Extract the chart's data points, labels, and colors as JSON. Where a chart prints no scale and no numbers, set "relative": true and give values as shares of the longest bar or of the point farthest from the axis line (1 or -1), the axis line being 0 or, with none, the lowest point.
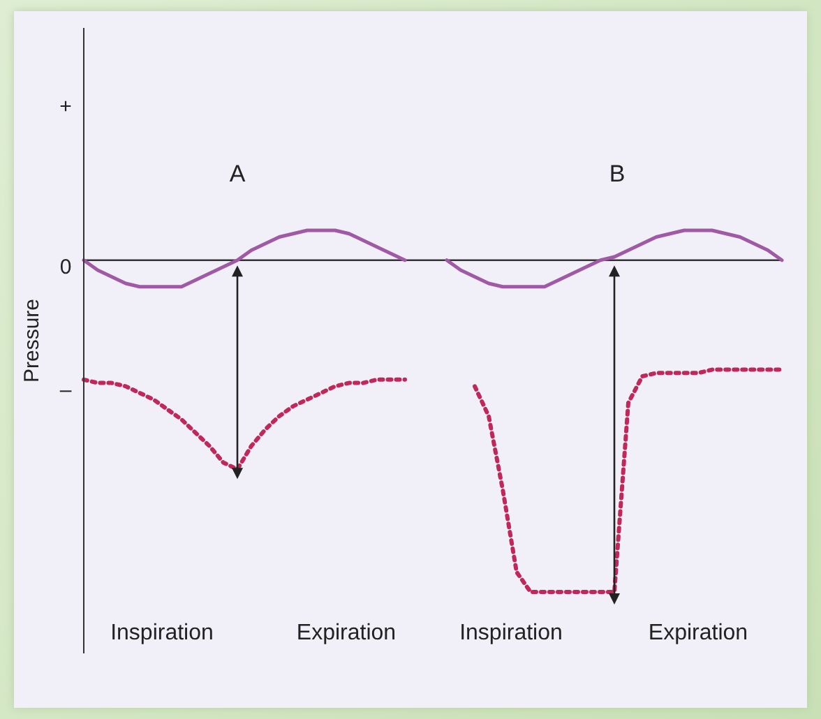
{
  "chart_data": {
    "type": "line",
    "ylabel": "Pressure",
    "relative": true,
    "categories": [
      null,
      null,
      null,
      null,
      null,
      null,
      null,
      null,
      null,
      null,
      null,
      null,
      null,
      null,
      null,
      null,
      null,
      null,
      null,
      null,
      null,
      null,
      null,
      null,
      null,
      null,
      null,
      null,
      null,
      null,
      null,
      null,
      null,
      null,
      null,
      null,
      null,
      null,
      null,
      null,
      null,
      null,
      null,
      null,
      null,
      null,
      null,
      null,
      null,
      null,
      null
    ],
    "series": [
      {
        "color": "#a05aa5",
        "line_style": "solid",
        "values": [
          0,
          -0.03,
          -0.05,
          -0.07,
          -0.08,
          -0.08,
          -0.08,
          -0.08,
          -0.06,
          -0.04,
          -0.02,
          0,
          0.03,
          0.05,
          0.07,
          0.08,
          0.09,
          0.09,
          0.09,
          0.08,
          0.06,
          0.04,
          0.02,
          0,
          null,
          null,
          null,
          null,
          null,
          null,
          null,
          null,
          null,
          null,
          null,
          null,
          null,
          null,
          null,
          null,
          null,
          null,
          null,
          null,
          null,
          null,
          null,
          null,
          null,
          null,
          null
        ]
      },
      {
        "color": "#a05aa5",
        "line_style": "solid",
        "values": [
          null,
          null,
          null,
          null,
          null,
          null,
          null,
          null,
          null,
          null,
          null,
          null,
          null,
          null,
          null,
          null,
          null,
          null,
          null,
          null,
          null,
          null,
          null,
          null,
          null,
          null,
          0,
          -0.03,
          -0.05,
          -0.07,
          -0.08,
          -0.08,
          -0.08,
          -0.08,
          -0.06,
          -0.04,
          -0.02,
          0,
          0.01,
          0.03,
          0.05,
          0.07,
          0.08,
          0.09,
          0.09,
          0.09,
          0.08,
          0.07,
          0.05,
          0.03,
          0
        ]
      },
      {
        "color": "#c0285a",
        "line_style": "dotted",
        "values": [
          -0.36,
          -0.37,
          -0.37,
          -0.38,
          -0.4,
          -0.42,
          -0.45,
          -0.48,
          -0.52,
          -0.56,
          -0.61,
          -0.63,
          -0.56,
          -0.51,
          -0.47,
          -0.44,
          -0.42,
          -0.4,
          -0.38,
          -0.37,
          -0.37,
          -0.36,
          -0.36,
          -0.36,
          null,
          null,
          null,
          null,
          null,
          null,
          null,
          null,
          null,
          null,
          null,
          null,
          null,
          null,
          null,
          null,
          null,
          null,
          null,
          null,
          null,
          null,
          null,
          null,
          null,
          null,
          null
        ]
      },
      {
        "color": "#c0285a",
        "line_style": "dotted",
        "values": [
          null,
          null,
          null,
          null,
          null,
          null,
          null,
          null,
          null,
          null,
          null,
          null,
          null,
          null,
          null,
          null,
          null,
          null,
          null,
          null,
          null,
          null,
          null,
          null,
          null,
          null,
          null,
          null,
          -0.38,
          -0.47,
          -0.69,
          -0.94,
          -1,
          -1,
          -1,
          -1,
          -1,
          -1,
          -1,
          -0.43,
          -0.35,
          -0.34,
          -0.34,
          -0.34,
          -0.34,
          -0.33,
          -0.33,
          -0.33,
          -0.33,
          -0.33,
          -0.33
        ]
      }
    ],
    "annotations": [
      "A",
      "B",
      "Inspiration",
      "Expiration",
      "Inspiration",
      "Expiration",
      "+",
      "0",
      "–"
    ],
    "grid": false,
    "legend": false,
    "marker": "none"
  }
}
